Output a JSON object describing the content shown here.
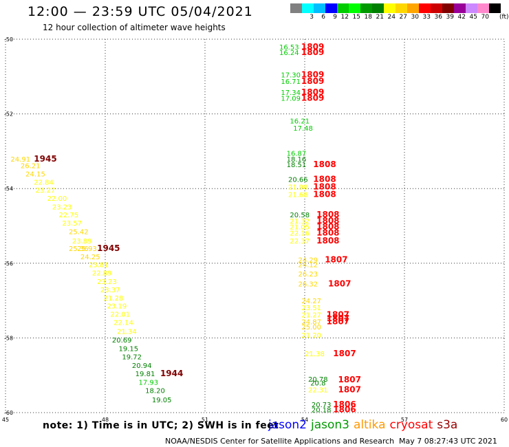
{
  "header": {
    "title": "12:00 — 23:59 UTC 05/04/2021",
    "subtitle": "12 hour collection of altimeter wave heights"
  },
  "colorbar": {
    "unit": "(ft)",
    "entries": [
      {
        "label": "",
        "color": "#808080"
      },
      {
        "label": "3",
        "color": "#00ffff"
      },
      {
        "label": "6",
        "color": "#00bfff"
      },
      {
        "label": "9",
        "color": "#0000ff"
      },
      {
        "label": "12",
        "color": "#00cc00"
      },
      {
        "label": "15",
        "color": "#00ff00"
      },
      {
        "label": "18",
        "color": "#009900"
      },
      {
        "label": "21",
        "color": "#008000"
      },
      {
        "label": "24",
        "color": "#ffff00"
      },
      {
        "label": "27",
        "color": "#ffd700"
      },
      {
        "label": "30",
        "color": "#ffa500"
      },
      {
        "label": "33",
        "color": "#ff0000"
      },
      {
        "label": "36",
        "color": "#cc0000"
      },
      {
        "label": "39",
        "color": "#800000"
      },
      {
        "label": "42",
        "color": "#990099"
      },
      {
        "label": "45",
        "color": "#cc88ff"
      },
      {
        "label": "70",
        "color": "#ff88cc"
      },
      {
        "label": "",
        "color": "#000000"
      }
    ]
  },
  "chart_data": {
    "type": "scatter",
    "xlim": [
      45,
      60
    ],
    "ylim": [
      -60,
      -50
    ],
    "x_ticks": [
      45,
      48,
      51,
      54,
      57,
      60
    ],
    "x_tick_labels": [
      "45",
      "48",
      "51",
      "54",
      "57",
      "60"
    ],
    "y_ticks": [
      -50,
      -52,
      -54,
      -56,
      -58,
      -60
    ],
    "y_tick_labels": [
      "-50",
      "-52",
      "-54",
      "-56",
      "-58",
      "-60"
    ],
    "grid": true,
    "points": [
      {
        "x": 53.53,
        "y": -50.2,
        "label": "16.53",
        "color": "#00cc00"
      },
      {
        "x": 53.53,
        "y": -50.35,
        "label": "16.24",
        "color": "#00cc00"
      },
      {
        "x": 54.24,
        "y": -50.2,
        "label": "1809",
        "color": "#ff0000"
      },
      {
        "x": 54.24,
        "y": -50.35,
        "label": "1809",
        "color": "#ff0000"
      },
      {
        "x": 53.58,
        "y": -50.95,
        "label": "17.30",
        "color": "#00cc00"
      },
      {
        "x": 53.58,
        "y": -51.12,
        "label": "16.71",
        "color": "#00cc00"
      },
      {
        "x": 54.24,
        "y": -50.95,
        "label": "1809",
        "color": "#ff0000"
      },
      {
        "x": 54.24,
        "y": -51.12,
        "label": "1809",
        "color": "#ff0000"
      },
      {
        "x": 53.58,
        "y": -51.42,
        "label": "17.34",
        "color": "#00cc00"
      },
      {
        "x": 53.58,
        "y": -51.57,
        "label": "17.09",
        "color": "#00cc00"
      },
      {
        "x": 54.24,
        "y": -51.42,
        "label": "1809",
        "color": "#ff0000"
      },
      {
        "x": 54.24,
        "y": -51.57,
        "label": "1809",
        "color": "#ff0000"
      },
      {
        "x": 53.85,
        "y": -52.18,
        "label": "16.21",
        "color": "#00cc00"
      },
      {
        "x": 53.95,
        "y": -52.38,
        "label": "17.48",
        "color": "#00cc00"
      },
      {
        "x": 53.75,
        "y": -53.05,
        "label": "16.87",
        "color": "#00cc00"
      },
      {
        "x": 53.75,
        "y": -53.2,
        "label": "18.16",
        "color": "#008000"
      },
      {
        "x": 53.75,
        "y": -53.35,
        "label": "18.51",
        "color": "#008000"
      },
      {
        "x": 54.6,
        "y": -53.35,
        "label": "1808",
        "color": "#ff0000"
      },
      {
        "x": 53.8,
        "y": -53.75,
        "label": "20.66",
        "color": "#008000"
      },
      {
        "x": 53.8,
        "y": -53.95,
        "label": "21.98",
        "color": "#ffff00"
      },
      {
        "x": 53.8,
        "y": -54.15,
        "label": "21.68",
        "color": "#ffff00"
      },
      {
        "x": 54.6,
        "y": -53.75,
        "label": "1808",
        "color": "#ff0000"
      },
      {
        "x": 54.6,
        "y": -53.95,
        "label": "1808",
        "color": "#ff0000"
      },
      {
        "x": 54.6,
        "y": -54.15,
        "label": "1808",
        "color": "#ff0000"
      },
      {
        "x": 53.85,
        "y": -54.7,
        "label": "20.58",
        "color": "#008000"
      },
      {
        "x": 53.85,
        "y": -54.86,
        "label": "21.32",
        "color": "#ffff00"
      },
      {
        "x": 53.85,
        "y": -55.02,
        "label": "21.05",
        "color": "#ffff00"
      },
      {
        "x": 53.85,
        "y": -55.18,
        "label": "22.16",
        "color": "#ffff00"
      },
      {
        "x": 53.85,
        "y": -55.4,
        "label": "22.37",
        "color": "#ffff00"
      },
      {
        "x": 54.7,
        "y": -54.7,
        "label": "1808",
        "color": "#ff0000"
      },
      {
        "x": 54.7,
        "y": -54.86,
        "label": "1808",
        "color": "#ff0000"
      },
      {
        "x": 54.7,
        "y": -55.02,
        "label": "1808",
        "color": "#ff0000"
      },
      {
        "x": 54.7,
        "y": -55.18,
        "label": "1808",
        "color": "#ff0000"
      },
      {
        "x": 54.7,
        "y": -55.4,
        "label": "1808",
        "color": "#ff0000"
      },
      {
        "x": 54.1,
        "y": -55.9,
        "label": "24.29",
        "color": "#ffd700"
      },
      {
        "x": 54.1,
        "y": -56.03,
        "label": "24.12",
        "color": "#ffd700"
      },
      {
        "x": 54.1,
        "y": -56.28,
        "label": "26.23",
        "color": "#ffd700"
      },
      {
        "x": 54.1,
        "y": -56.55,
        "label": "26.32",
        "color": "#ffd700"
      },
      {
        "x": 54.95,
        "y": -55.9,
        "label": "1807",
        "color": "#ff0000"
      },
      {
        "x": 55.05,
        "y": -56.55,
        "label": "1807",
        "color": "#ff0000"
      },
      {
        "x": 54.2,
        "y": -57.0,
        "label": "24.27",
        "color": "#ffd700"
      },
      {
        "x": 54.2,
        "y": -57.18,
        "label": "23.51",
        "color": "#ffff00"
      },
      {
        "x": 54.2,
        "y": -57.38,
        "label": "21.27",
        "color": "#ffff00"
      },
      {
        "x": 54.2,
        "y": -57.56,
        "label": "24.87",
        "color": "#ffd700"
      },
      {
        "x": 54.2,
        "y": -57.7,
        "label": "25.00",
        "color": "#ffd700"
      },
      {
        "x": 54.2,
        "y": -57.92,
        "label": "21.20",
        "color": "#ffff00"
      },
      {
        "x": 55.0,
        "y": -57.38,
        "label": "1807",
        "color": "#ff0000"
      },
      {
        "x": 55.0,
        "y": -57.48,
        "label": "1807",
        "color": "#ff0000"
      },
      {
        "x": 55.0,
        "y": -57.56,
        "label": "1807",
        "color": "#ff0000"
      },
      {
        "x": 54.3,
        "y": -58.42,
        "label": "21.38",
        "color": "#ffff00"
      },
      {
        "x": 55.2,
        "y": -58.42,
        "label": "1807",
        "color": "#ff0000"
      },
      {
        "x": 54.4,
        "y": -59.1,
        "label": "20.78",
        "color": "#008000"
      },
      {
        "x": 54.4,
        "y": -59.2,
        "label": "20.8",
        "color": "#008000"
      },
      {
        "x": 54.4,
        "y": -59.38,
        "label": "22.31",
        "color": "#ffff00"
      },
      {
        "x": 55.35,
        "y": -59.12,
        "label": "1807",
        "color": "#ff0000"
      },
      {
        "x": 55.35,
        "y": -59.38,
        "label": "1807",
        "color": "#ff0000"
      },
      {
        "x": 54.5,
        "y": -59.78,
        "label": "20.73",
        "color": "#008000"
      },
      {
        "x": 54.5,
        "y": -59.92,
        "label": "20.18",
        "color": "#008000"
      },
      {
        "x": 55.2,
        "y": -59.78,
        "label": "1806",
        "color": "#ff0000"
      },
      {
        "x": 55.2,
        "y": -59.92,
        "label": "1806",
        "color": "#ff0000"
      },
      {
        "x": 45.45,
        "y": -53.2,
        "label": "24.91",
        "color": "#ffd700"
      },
      {
        "x": 46.2,
        "y": -53.2,
        "label": "1945",
        "color": "#800000"
      },
      {
        "x": 45.75,
        "y": -53.38,
        "label": "26.21",
        "color": "#ffd700"
      },
      {
        "x": 45.9,
        "y": -53.6,
        "label": "24.15",
        "color": "#ffd700"
      },
      {
        "x": 46.15,
        "y": -53.82,
        "label": "22.84",
        "color": "#ffff00"
      },
      {
        "x": 46.2,
        "y": -54.03,
        "label": "23.27",
        "color": "#ffff00"
      },
      {
        "x": 46.55,
        "y": -54.25,
        "label": "22.00",
        "color": "#ffff00"
      },
      {
        "x": 46.7,
        "y": -54.48,
        "label": "23.23",
        "color": "#ffff00"
      },
      {
        "x": 46.9,
        "y": -54.7,
        "label": "22.75",
        "color": "#ffff00"
      },
      {
        "x": 47.0,
        "y": -54.92,
        "label": "23.57",
        "color": "#ffff00"
      },
      {
        "x": 47.2,
        "y": -55.15,
        "label": "25.42",
        "color": "#ffd700"
      },
      {
        "x": 47.3,
        "y": -55.4,
        "label": "23.89",
        "color": "#ffff00"
      },
      {
        "x": 47.2,
        "y": -55.6,
        "label": "25.36",
        "color": "#ffd700"
      },
      {
        "x": 47.45,
        "y": -55.6,
        "label": "25.93",
        "color": "#ffd700"
      },
      {
        "x": 48.1,
        "y": -55.6,
        "label": "1945",
        "color": "#800000"
      },
      {
        "x": 47.55,
        "y": -55.82,
        "label": "24.25",
        "color": "#ffd700"
      },
      {
        "x": 47.8,
        "y": -56.03,
        "label": "23.81",
        "color": "#ffff00"
      },
      {
        "x": 47.9,
        "y": -56.25,
        "label": "22.89",
        "color": "#ffff00"
      },
      {
        "x": 48.05,
        "y": -56.48,
        "label": "23.23",
        "color": "#ffff00"
      },
      {
        "x": 48.15,
        "y": -56.7,
        "label": "23.37",
        "color": "#ffff00"
      },
      {
        "x": 48.25,
        "y": -56.92,
        "label": "21.28",
        "color": "#ffff00"
      },
      {
        "x": 48.35,
        "y": -57.14,
        "label": "23.19",
        "color": "#ffff00"
      },
      {
        "x": 48.45,
        "y": -57.36,
        "label": "22.01",
        "color": "#ffff00"
      },
      {
        "x": 48.55,
        "y": -57.58,
        "label": "22.14",
        "color": "#ffff00"
      },
      {
        "x": 48.65,
        "y": -57.82,
        "label": "21.34",
        "color": "#ffff00"
      },
      {
        "x": 48.5,
        "y": -58.05,
        "label": "20.69",
        "color": "#008000"
      },
      {
        "x": 48.7,
        "y": -58.28,
        "label": "19.15",
        "color": "#008000"
      },
      {
        "x": 48.8,
        "y": -58.5,
        "label": "19.72",
        "color": "#008000"
      },
      {
        "x": 49.1,
        "y": -58.73,
        "label": "20.94",
        "color": "#008000"
      },
      {
        "x": 49.2,
        "y": -58.95,
        "label": "19.81",
        "color": "#008000"
      },
      {
        "x": 50.0,
        "y": -58.95,
        "label": "1944",
        "color": "#800000"
      },
      {
        "x": 49.3,
        "y": -59.18,
        "label": "17.93",
        "color": "#00cc00"
      },
      {
        "x": 49.5,
        "y": -59.4,
        "label": "18.20",
        "color": "#008000"
      },
      {
        "x": 49.7,
        "y": -59.65,
        "label": "19.05",
        "color": "#008000"
      }
    ]
  },
  "note": "note:  1) Time is in UTC; 2) SWH is in feet",
  "satellites": [
    {
      "name": "jason2",
      "color": "#0000ff"
    },
    {
      "name": "jason3",
      "color": "#009900"
    },
    {
      "name": "altika",
      "color": "#ff9900"
    },
    {
      "name": "cryosat",
      "color": "#ff0000"
    },
    {
      "name": "s3a",
      "color": "#990000"
    }
  ],
  "credit": "NOAA/NESDIS Center for Satellite Applications and Research",
  "timestamp": "May  7 08:27:43 UTC 2021"
}
